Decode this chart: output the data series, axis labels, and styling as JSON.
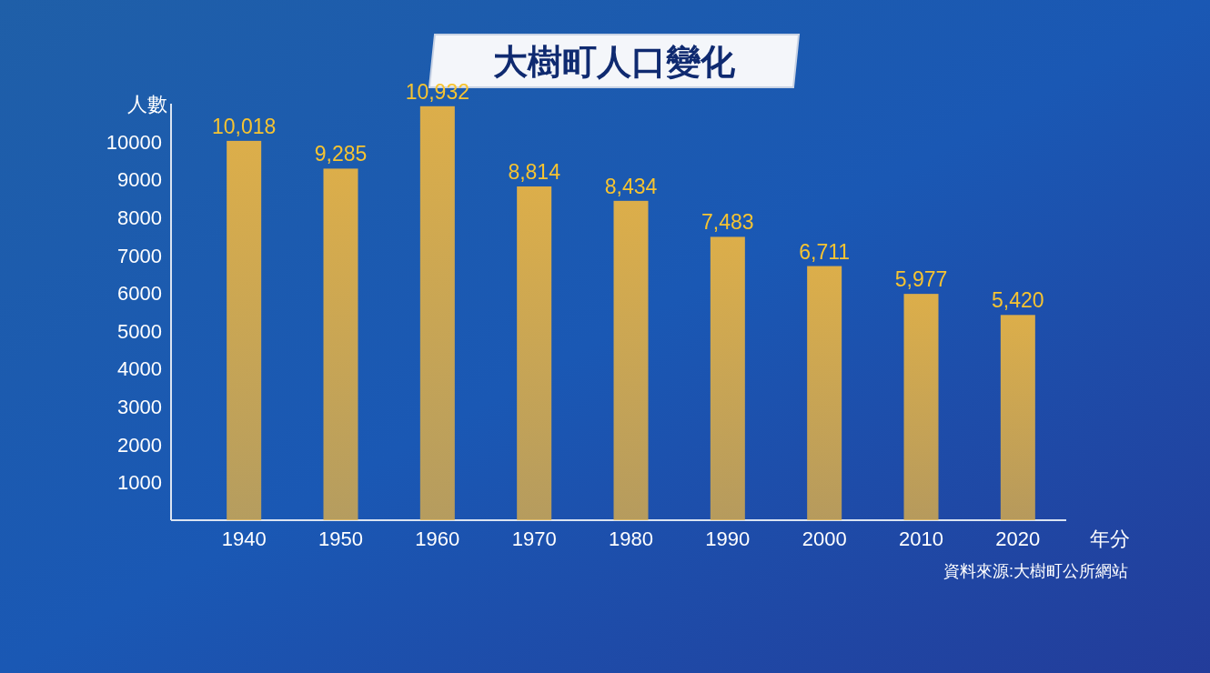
{
  "chart_data": {
    "type": "bar",
    "title": "大樹町人口變化",
    "xlabel": "年分",
    "ylabel": "人數",
    "categories": [
      "1940",
      "1950",
      "1960",
      "1970",
      "1980",
      "1990",
      "2000",
      "2010",
      "2020"
    ],
    "values": [
      10018,
      9285,
      10932,
      8814,
      8434,
      7483,
      6711,
      5977,
      5420
    ],
    "value_labels": [
      "10,018",
      "9,285",
      "10,932",
      "8,814",
      "8,434",
      "7,483",
      "6,711",
      "5,977",
      "5,420"
    ],
    "color": "#dcae4a",
    "ylim": [
      0,
      11000
    ],
    "yticks": [
      1000,
      2000,
      3000,
      4000,
      5000,
      6000,
      7000,
      8000,
      9000,
      10000
    ],
    "annotations": [
      "資料來源:大樹町公所網站"
    ]
  }
}
